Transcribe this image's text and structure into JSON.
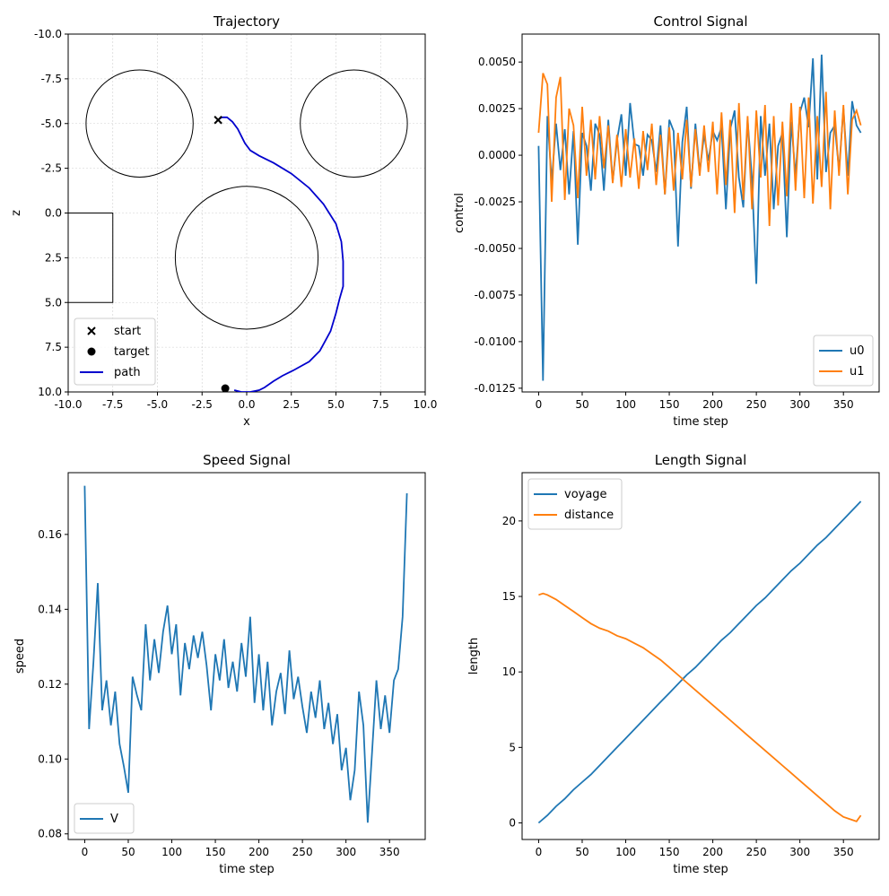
{
  "chart_data": [
    {
      "type": "line",
      "title": "Trajectory",
      "xlabel": "x",
      "ylabel": "z",
      "xlim": [
        -10,
        10
      ],
      "ylim": [
        -10,
        10
      ],
      "y_inverted": true,
      "xticks": [
        -10,
        -7.5,
        -5,
        -2.5,
        0,
        2.5,
        5,
        7.5,
        10
      ],
      "yticks": [
        -10,
        -7.5,
        -5,
        -2.5,
        0,
        2.5,
        5,
        7.5,
        10
      ],
      "xtick_labels": [
        "-10.0",
        "-7.5",
        "-5.0",
        "-2.5",
        "0.0",
        "2.5",
        "5.0",
        "7.5",
        "10.0"
      ],
      "ytick_labels": [
        "-10.0",
        "-7.5",
        "-5.0",
        "-2.5",
        "0.0",
        "2.5",
        "5.0",
        "7.5",
        "10.0"
      ],
      "grid": true,
      "legend": {
        "placement": "lower-left",
        "entries": [
          "start",
          "target",
          "path"
        ]
      },
      "start": {
        "x": -1.6,
        "z": -5.2
      },
      "target": {
        "x": -1.2,
        "z": 9.8
      },
      "obstacles": [
        {
          "shape": "circle",
          "cx": -6,
          "cz": -5,
          "r": 3
        },
        {
          "shape": "circle",
          "cx": 6,
          "cz": -5,
          "r": 3
        },
        {
          "shape": "circle",
          "cx": 0,
          "cz": 2.5,
          "r": 4
        },
        {
          "shape": "rect",
          "x0": -10,
          "x1": -7.5,
          "z0": 0,
          "z1": 5
        }
      ],
      "path": [
        [
          -1.6,
          -5.2
        ],
        [
          -1.4,
          -5.35
        ],
        [
          -1.1,
          -5.35
        ],
        [
          -0.8,
          -5.1
        ],
        [
          -0.5,
          -4.7
        ],
        [
          -0.3,
          -4.3
        ],
        [
          -0.1,
          -3.9
        ],
        [
          0.2,
          -3.5
        ],
        [
          0.7,
          -3.2
        ],
        [
          1.5,
          -2.8
        ],
        [
          2.5,
          -2.2
        ],
        [
          3.5,
          -1.4
        ],
        [
          4.3,
          -0.5
        ],
        [
          5.0,
          0.6
        ],
        [
          5.3,
          1.6
        ],
        [
          5.4,
          2.7
        ],
        [
          5.4,
          4.1
        ],
        [
          5.2,
          4.8
        ],
        [
          5.0,
          5.6
        ],
        [
          4.7,
          6.6
        ],
        [
          4.1,
          7.7
        ],
        [
          3.5,
          8.3
        ],
        [
          2.6,
          8.8
        ],
        [
          2.0,
          9.1
        ],
        [
          1.5,
          9.4
        ],
        [
          1.0,
          9.75
        ],
        [
          0.7,
          9.9
        ],
        [
          0.2,
          10.0
        ],
        [
          -0.3,
          10.0
        ],
        [
          -0.7,
          9.9
        ]
      ]
    },
    {
      "type": "line",
      "title": "Control Signal",
      "xlabel": "time step",
      "ylabel": "control",
      "xlim": [
        -19,
        391
      ],
      "ylim": [
        -0.0127,
        0.0065
      ],
      "xticks": [
        0,
        50,
        100,
        150,
        200,
        250,
        300,
        350
      ],
      "yticks": [
        -0.0125,
        -0.01,
        -0.0075,
        -0.005,
        -0.0025,
        0,
        0.0025,
        0.005
      ],
      "xtick_labels": [
        "0",
        "50",
        "100",
        "150",
        "200",
        "250",
        "300",
        "350"
      ],
      "ytick_labels": [
        "-0.0125",
        "-0.0100",
        "-0.0075",
        "-0.0050",
        "-0.0025",
        "0.0000",
        "0.0025",
        "0.0050"
      ],
      "grid": false,
      "legend": {
        "placement": "lower-right",
        "entries": [
          "u0",
          "u1"
        ]
      },
      "series": [
        {
          "name": "u0",
          "color": "#1f77b4",
          "x_step": 5,
          "values": [
            0.0005,
            -0.0121,
            0.0021,
            -0.0014,
            0.0017,
            -0.0008,
            0.0014,
            -0.0021,
            0.0013,
            -0.0048,
            0.0012,
            0.0005,
            -0.0019,
            0.0017,
            0.0011,
            -0.0019,
            0.0019,
            -0.0014,
            0.0008,
            0.0022,
            -0.0011,
            0.0028,
            0.0006,
            0.0005,
            -0.0011,
            0.0011,
            0.0008,
            -0.0009,
            0.0016,
            -0.0021,
            0.0019,
            0.0013,
            -0.0049,
            0.0007,
            0.0026,
            -0.0018,
            0.0017,
            -0.0009,
            0.0011,
            -0.0003,
            0.0013,
            0.0008,
            0.0015,
            -0.0029,
            0.0014,
            0.0024,
            -0.0012,
            -0.0028,
            0.0019,
            -0.0013,
            -0.0069,
            0.0021,
            -0.0011,
            0.0017,
            -0.0029,
            0.0005,
            0.0012,
            -0.0044,
            0.0018,
            -0.0011,
            0.0023,
            0.0031,
            0.0015,
            0.0052,
            -0.0013,
            0.0054,
            -0.0009,
            0.0012,
            0.0016,
            -0.0008,
            0.0025,
            -0.0011,
            0.0029,
            0.0016,
            0.0012
          ]
        },
        {
          "name": "u1",
          "color": "#ff7f0e",
          "x_step": 5,
          "values": [
            0.0012,
            0.0044,
            0.0038,
            -0.0025,
            0.0031,
            0.0042,
            -0.0024,
            0.0025,
            0.0016,
            -0.0023,
            0.0026,
            -0.0011,
            0.0019,
            -0.0013,
            0.0021,
            -0.0007,
            0.0016,
            -0.0015,
            0.0011,
            -0.0017,
            0.0014,
            -0.0012,
            0.0009,
            -0.0018,
            0.0013,
            -0.0008,
            0.0017,
            -0.0016,
            0.0011,
            -0.0021,
            0.0015,
            -0.0019,
            0.0012,
            -0.0013,
            0.0019,
            -0.0017,
            0.0014,
            -0.0011,
            0.0016,
            -0.0009,
            0.0018,
            -0.0021,
            0.0023,
            -0.0016,
            0.0019,
            -0.0031,
            0.0028,
            -0.0024,
            0.0021,
            -0.0029,
            0.0024,
            -0.0012,
            0.0027,
            -0.0038,
            0.0021,
            -0.0027,
            0.0018,
            -0.0022,
            0.0028,
            -0.0019,
            0.0026,
            -0.0023,
            0.0031,
            -0.0026,
            0.0021,
            -0.0017,
            0.0034,
            -0.0029,
            0.0024,
            -0.0011,
            0.0027,
            -0.0021,
            0.0019,
            0.0024,
            0.0016
          ]
        }
      ]
    },
    {
      "type": "line",
      "title": "Speed Signal",
      "xlabel": "time step",
      "ylabel": "speed",
      "xlim": [
        -19,
        391
      ],
      "ylim": [
        0.0785,
        0.1765
      ],
      "xticks": [
        0,
        50,
        100,
        150,
        200,
        250,
        300,
        350
      ],
      "yticks": [
        0.08,
        0.1,
        0.12,
        0.14,
        0.16
      ],
      "xtick_labels": [
        "0",
        "50",
        "100",
        "150",
        "200",
        "250",
        "300",
        "350"
      ],
      "ytick_labels": [
        "0.08",
        "0.10",
        "0.12",
        "0.14",
        "0.16"
      ],
      "grid": false,
      "legend": {
        "placement": "lower-left",
        "entries": [
          "V"
        ]
      },
      "series": [
        {
          "name": "V",
          "color": "#1f77b4",
          "x_step": 5,
          "values": [
            0.173,
            0.108,
            0.126,
            0.147,
            0.113,
            0.121,
            0.109,
            0.118,
            0.104,
            0.098,
            0.091,
            0.122,
            0.117,
            0.113,
            0.136,
            0.121,
            0.132,
            0.123,
            0.134,
            0.141,
            0.128,
            0.136,
            0.117,
            0.131,
            0.124,
            0.133,
            0.127,
            0.134,
            0.125,
            0.113,
            0.128,
            0.121,
            0.132,
            0.119,
            0.126,
            0.118,
            0.131,
            0.122,
            0.138,
            0.115,
            0.128,
            0.113,
            0.126,
            0.109,
            0.118,
            0.123,
            0.112,
            0.129,
            0.116,
            0.122,
            0.114,
            0.107,
            0.118,
            0.111,
            0.121,
            0.108,
            0.115,
            0.104,
            0.112,
            0.097,
            0.103,
            0.089,
            0.097,
            0.118,
            0.109,
            0.083,
            0.102,
            0.121,
            0.108,
            0.117,
            0.107,
            0.121,
            0.124,
            0.138,
            0.171
          ]
        }
      ]
    },
    {
      "type": "line",
      "title": "Length Signal",
      "xlabel": "time step",
      "ylabel": "length",
      "xlim": [
        -19,
        391
      ],
      "ylim": [
        -1.1,
        23.2
      ],
      "xticks": [
        0,
        50,
        100,
        150,
        200,
        250,
        300,
        350
      ],
      "yticks": [
        0,
        5,
        10,
        15,
        20
      ],
      "xtick_labels": [
        "0",
        "50",
        "100",
        "150",
        "200",
        "250",
        "300",
        "350"
      ],
      "ytick_labels": [
        "0",
        "5",
        "10",
        "15",
        "20"
      ],
      "grid": false,
      "legend": {
        "placement": "upper-left",
        "entries": [
          "voyage",
          "distance"
        ]
      },
      "series": [
        {
          "name": "voyage",
          "color": "#1f77b4",
          "x": [
            0,
            10,
            20,
            30,
            40,
            50,
            60,
            70,
            80,
            90,
            100,
            110,
            120,
            130,
            140,
            150,
            160,
            170,
            180,
            190,
            200,
            210,
            220,
            230,
            240,
            250,
            260,
            270,
            280,
            290,
            300,
            310,
            320,
            330,
            340,
            350,
            360,
            370
          ],
          "values": [
            0,
            0.5,
            1.1,
            1.6,
            2.2,
            2.7,
            3.2,
            3.8,
            4.4,
            5.0,
            5.6,
            6.2,
            6.8,
            7.4,
            8.0,
            8.6,
            9.2,
            9.8,
            10.3,
            10.9,
            11.5,
            12.1,
            12.6,
            13.2,
            13.8,
            14.4,
            14.9,
            15.5,
            16.1,
            16.7,
            17.2,
            17.8,
            18.4,
            18.9,
            19.5,
            20.1,
            20.7,
            21.3
          ]
        },
        {
          "name": "distance",
          "color": "#ff7f0e",
          "x": [
            0,
            5,
            10,
            20,
            30,
            40,
            50,
            60,
            70,
            80,
            90,
            100,
            110,
            120,
            130,
            140,
            150,
            160,
            170,
            180,
            190,
            200,
            210,
            220,
            230,
            240,
            250,
            260,
            270,
            280,
            290,
            300,
            310,
            320,
            330,
            340,
            350,
            360,
            365,
            370
          ],
          "values": [
            15.1,
            15.2,
            15.1,
            14.8,
            14.4,
            14.0,
            13.6,
            13.2,
            12.9,
            12.7,
            12.4,
            12.2,
            11.9,
            11.6,
            11.2,
            10.8,
            10.3,
            9.8,
            9.3,
            8.8,
            8.3,
            7.8,
            7.3,
            6.8,
            6.3,
            5.8,
            5.3,
            4.8,
            4.3,
            3.8,
            3.3,
            2.8,
            2.3,
            1.8,
            1.3,
            0.8,
            0.4,
            0.2,
            0.1,
            0.5
          ]
        }
      ]
    }
  ]
}
